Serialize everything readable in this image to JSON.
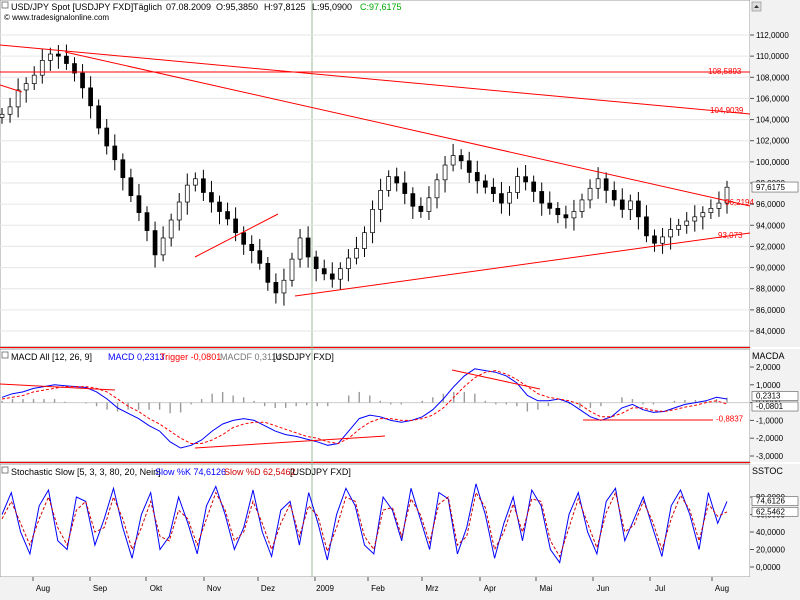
{
  "chart_data": [
    {
      "type": "candlestick",
      "symbol": "USD/JPY Spot [USDJPY FXD]",
      "period": "Täglich",
      "date": "07.08.2009",
      "open_label": "O:95,3850",
      "high_label": "H:97,8125",
      "low_label": "L:95,0900",
      "close_label": "C:97,6175",
      "source": "© www.tradesignalonline.com",
      "y_ticks": [
        "112,0000",
        "110,0000",
        "108,0000",
        "106,0000",
        "104,0000",
        "102,0000",
        "100,0000",
        "98,0000",
        "96,0000",
        "94,0000",
        "92,0000",
        "90,0000",
        "88,0000",
        "86,0000",
        "84,0000"
      ],
      "last_price_label": "97,6175",
      "ylim": [
        83,
        113
      ],
      "series_close": [
        104.5,
        105.2,
        106.8,
        107.4,
        108.2,
        109.6,
        110.2,
        110.0,
        109.3,
        108.4,
        107.0,
        105.3,
        103.2,
        101.5,
        100.2,
        98.5,
        96.8,
        95.2,
        93.5,
        91.2,
        92.8,
        94.5,
        96.2,
        97.8,
        98.4,
        97.1,
        96.2,
        95.3,
        94.6,
        93.3,
        92.2,
        91.6,
        90.4,
        88.6,
        87.6,
        88.8,
        90.8,
        92.8,
        91.0,
        89.9,
        89.4,
        88.9,
        89.9,
        90.9,
        91.8,
        93.3,
        95.5,
        97.3,
        98.6,
        98.0,
        97.0,
        95.8,
        95.3,
        96.6,
        98.3,
        99.7,
        100.6,
        100.1,
        99.0,
        98.2,
        97.6,
        97.0,
        96.1,
        97.1,
        98.6,
        98.1,
        97.2,
        96.1,
        95.6,
        95.0,
        94.7,
        95.3,
        96.4,
        97.5,
        98.4,
        97.3,
        96.4,
        95.5,
        96.3,
        94.8,
        93.0,
        92.3,
        92.9,
        93.6,
        94.0,
        94.4,
        94.8,
        95.2,
        95.6,
        96.1,
        97.6
      ],
      "annotations": [
        {
          "label": "108,5893",
          "value": 108.5893
        },
        {
          "label": "104,9039",
          "value": 104.9039
        },
        {
          "label": "96,2194",
          "value": 96.2194
        },
        {
          "label": "93,073",
          "value": 93.073
        }
      ],
      "x_ticks": [
        "Aug",
        "Sep",
        "Okt",
        "Nov",
        "Dez",
        "2009",
        "Feb",
        "Mrz",
        "Apr",
        "Mai",
        "Jun",
        "Jul",
        "Aug"
      ],
      "colors": {
        "up": "#000000",
        "down": "#000000",
        "trend": "#ff0000",
        "year_line": "#99bb99"
      }
    },
    {
      "type": "line",
      "title": "MACD All [12, 26, 9]",
      "macd_label": "MACD 0,2313",
      "trigger_label": "Trigger -0,0801",
      "macdf_label": "MACDF 0,3114",
      "instrument": "[USDJPY FXD]",
      "short_name": "MACDA",
      "y_ticks": [
        "2,0000",
        "1,0000",
        "0,0000",
        "-1,0000",
        "-2,0000",
        "-3,0000"
      ],
      "ylim": [
        -3.6,
        2.8
      ],
      "value_labels": [
        "0,2313",
        "-0,0801"
      ],
      "annotation_label": "-0,8837",
      "series": [
        {
          "name": "MACD",
          "color": "#0000ff",
          "values": [
            0.3,
            0.5,
            0.6,
            0.8,
            0.9,
            1.0,
            0.95,
            0.9,
            0.85,
            0.6,
            0.2,
            -0.3,
            -0.6,
            -0.9,
            -1.3,
            -1.6,
            -2.2,
            -2.55,
            -2.4,
            -2.1,
            -1.6,
            -1.2,
            -1.0,
            -0.9,
            -1.0,
            -1.3,
            -1.6,
            -1.8,
            -1.9,
            -2.05,
            -2.2,
            -2.4,
            -2.3,
            -1.6,
            -0.9,
            -0.7,
            -0.8,
            -1.0,
            -1.1,
            -1.0,
            -0.8,
            -0.4,
            0.2,
            0.9,
            1.5,
            1.9,
            1.8,
            1.7,
            1.5,
            1.1,
            0.4,
            0.1,
            0.1,
            0.2,
            0.0,
            -0.4,
            -0.8,
            -1.0,
            -0.8,
            -0.3,
            -0.1,
            -0.4,
            -0.55,
            -0.5,
            -0.3,
            -0.1,
            0.0,
            0.1,
            0.3,
            0.2
          ]
        },
        {
          "name": "Trigger",
          "color": "#ff0000",
          "values": [
            0.2,
            0.3,
            0.4,
            0.6,
            0.7,
            0.8,
            0.9,
            0.9,
            0.9,
            0.8,
            0.6,
            0.2,
            -0.2,
            -0.5,
            -0.9,
            -1.2,
            -1.6,
            -2.0,
            -2.3,
            -2.3,
            -2.1,
            -1.8,
            -1.4,
            -1.2,
            -1.1,
            -1.1,
            -1.3,
            -1.5,
            -1.7,
            -1.9,
            -2.0,
            -2.2,
            -2.3,
            -2.0,
            -1.5,
            -1.1,
            -0.9,
            -0.9,
            -1.0,
            -1.0,
            -0.9,
            -0.7,
            -0.3,
            0.3,
            0.9,
            1.4,
            1.7,
            1.8,
            1.6,
            1.3,
            0.9,
            0.5,
            0.3,
            0.2,
            0.1,
            -0.1,
            -0.5,
            -0.8,
            -0.8,
            -0.6,
            -0.3,
            -0.3,
            -0.45,
            -0.5,
            -0.4,
            -0.25,
            -0.15,
            0.0,
            0.1,
            -0.08
          ]
        }
      ]
    },
    {
      "type": "line",
      "title": "Stochastic Slow [5, 3, 3, 80, 20, Nein]",
      "k_label": "Slow %K 74,6126",
      "d_label": "Slow %D 62,5462",
      "instrument": "[USDJPY FXD]",
      "short_name": "SSTOC",
      "y_ticks": [
        "80,0000",
        "60,0000",
        "40,0000",
        "20,0000",
        "0,0000"
      ],
      "ylim": [
        -5,
        105
      ],
      "value_labels": [
        "74,6126",
        "62,5462"
      ],
      "series": [
        {
          "name": "Slow %K",
          "color": "#0000ff",
          "values": [
            60,
            85,
            40,
            15,
            70,
            88,
            30,
            20,
            80,
            75,
            25,
            55,
            90,
            45,
            10,
            60,
            85,
            20,
            35,
            80,
            50,
            15,
            70,
            92,
            60,
            20,
            45,
            88,
            40,
            12,
            65,
            75,
            25,
            85,
            50,
            8,
            60,
            90,
            70,
            25,
            15,
            80,
            65,
            30,
            90,
            55,
            20,
            85,
            78,
            15,
            45,
            95,
            60,
            10,
            50,
            80,
            30,
            88,
            70,
            20,
            5,
            60,
            85,
            40,
            15,
            75,
            90,
            30,
            55,
            80,
            45,
            12,
            70,
            88,
            60,
            20,
            85,
            50,
            75
          ]
        },
        {
          "name": "Slow %D",
          "color": "#cc0000",
          "values": [
            55,
            75,
            50,
            25,
            55,
            80,
            45,
            25,
            65,
            75,
            40,
            45,
            80,
            55,
            20,
            45,
            75,
            35,
            30,
            65,
            55,
            25,
            55,
            85,
            65,
            30,
            40,
            75,
            50,
            20,
            50,
            72,
            35,
            70,
            58,
            18,
            45,
            80,
            75,
            35,
            20,
            65,
            68,
            35,
            78,
            60,
            28,
            72,
            80,
            25,
            35,
            85,
            68,
            20,
            40,
            72,
            40,
            78,
            75,
            30,
            12,
            45,
            78,
            50,
            22,
            62,
            85,
            40,
            48,
            75,
            52,
            20,
            55,
            82,
            65,
            30,
            72,
            58,
            63
          ]
        }
      ]
    }
  ]
}
